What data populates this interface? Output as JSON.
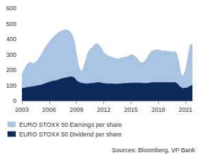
{
  "chart_data": {
    "type": "area",
    "x": [
      2003,
      2003.25,
      2003.5,
      2003.75,
      2004,
      2004.25,
      2004.5,
      2004.75,
      2005,
      2005.25,
      2005.5,
      2005.75,
      2006,
      2006.25,
      2006.5,
      2006.75,
      2007,
      2007.25,
      2007.5,
      2007.75,
      2008,
      2008.25,
      2008.5,
      2008.75,
      2009,
      2009.25,
      2009.5,
      2009.75,
      2010,
      2010.25,
      2010.5,
      2010.75,
      2011,
      2011.25,
      2011.5,
      2011.75,
      2012,
      2012.25,
      2012.5,
      2012.75,
      2013,
      2013.25,
      2013.5,
      2013.75,
      2014,
      2014.25,
      2014.5,
      2014.75,
      2015,
      2015.25,
      2015.5,
      2015.75,
      2016,
      2016.25,
      2016.5,
      2016.75,
      2017,
      2017.25,
      2017.5,
      2017.75,
      2018,
      2018.25,
      2018.5,
      2018.75,
      2019,
      2019.25,
      2019.5,
      2019.75,
      2020,
      2020.25,
      2020.5,
      2020.75,
      2021,
      2021.25,
      2021.5,
      2021.75
    ],
    "series": [
      {
        "name": "EURO STOXX 50 Earnings per share",
        "color": "#a9c4e3",
        "values": [
          170,
          200,
          230,
          245,
          250,
          240,
          250,
          265,
          285,
          310,
          340,
          360,
          380,
          400,
          415,
          430,
          440,
          450,
          455,
          460,
          460,
          450,
          430,
          390,
          300,
          220,
          190,
          210,
          260,
          310,
          335,
          345,
          365,
          370,
          360,
          340,
          310,
          300,
          290,
          285,
          280,
          275,
          270,
          275,
          280,
          280,
          285,
          290,
          300,
          295,
          285,
          270,
          250,
          245,
          255,
          275,
          300,
          320,
          325,
          330,
          330,
          325,
          320,
          325,
          320,
          320,
          315,
          320,
          310,
          250,
          170,
          160,
          200,
          280,
          360,
          370
        ]
      },
      {
        "name": "EURO STOXX 50 Dividend per share",
        "color": "#0b2a5b",
        "values": [
          80,
          82,
          85,
          88,
          90,
          92,
          95,
          98,
          100,
          105,
          110,
          115,
          120,
          125,
          128,
          130,
          135,
          140,
          145,
          148,
          150,
          155,
          155,
          150,
          130,
          120,
          115,
          112,
          110,
          110,
          112,
          112,
          115,
          118,
          118,
          115,
          112,
          110,
          110,
          110,
          110,
          108,
          108,
          110,
          110,
          112,
          112,
          113,
          115,
          115,
          115,
          115,
          115,
          113,
          112,
          113,
          115,
          117,
          118,
          118,
          118,
          118,
          118,
          118,
          118,
          118,
          118,
          118,
          115,
          100,
          85,
          80,
          82,
          85,
          95,
          100
        ]
      }
    ],
    "xlim": [
      2003,
      2021.75
    ],
    "xticks": [
      2003,
      2006,
      2009,
      2012,
      2015,
      2018,
      2021
    ],
    "ylim": [
      0,
      600
    ],
    "yticks": [
      0,
      100,
      200,
      300,
      400,
      500,
      600
    ],
    "grid": false,
    "legend": "bottom-left",
    "source": "Sources: Bloomberg, VP Bank"
  }
}
